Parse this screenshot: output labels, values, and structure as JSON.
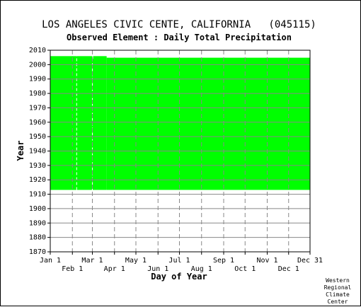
{
  "chart_data": {
    "type": "area",
    "title": "LOS ANGELES CIVIC CENTE, CALIFORNIA   (045115)",
    "subtitle": "Observed Element : Daily Total Precipitation",
    "xlabel": "Day of Year",
    "ylabel": "Year",
    "ylim": [
      1870,
      2010
    ],
    "xlim": [
      1,
      365
    ],
    "y_ticks": [
      1870,
      1880,
      1890,
      1900,
      1910,
      1920,
      1930,
      1940,
      1950,
      1960,
      1970,
      1980,
      1990,
      2000,
      2010
    ],
    "x_ticks_upper": [
      {
        "day": 1,
        "label": "Jan 1"
      },
      {
        "day": 60,
        "label": "Mar 1"
      },
      {
        "day": 121,
        "label": "May 1"
      },
      {
        "day": 182,
        "label": "Jul 1"
      },
      {
        "day": 244,
        "label": "Sep 1"
      },
      {
        "day": 305,
        "label": "Nov 1"
      },
      {
        "day": 365,
        "label": "Dec 31"
      }
    ],
    "x_ticks_lower": [
      {
        "day": 32,
        "label": "Feb 1"
      },
      {
        "day": 91,
        "label": "Apr 1"
      },
      {
        "day": 152,
        "label": "Jun 1"
      },
      {
        "day": 213,
        "label": "Aug 1"
      },
      {
        "day": 274,
        "label": "Oct 1"
      },
      {
        "day": 335,
        "label": "Dec 1"
      }
    ],
    "series": [
      {
        "color": "#00ff00",
        "start_year": 1913,
        "segments": [
          {
            "day_start": 1,
            "day_end": 60,
            "end_year": 2005.9
          },
          {
            "day_start": 60,
            "day_end": 61,
            "end_year": 2004.0
          },
          {
            "day_start": 61,
            "day_end": 80,
            "end_year": 2005.9
          },
          {
            "day_start": 80,
            "day_end": 365,
            "end_year": 2004.8
          }
        ],
        "gaps": [
          {
            "day": 38
          },
          {
            "day": 60
          }
        ]
      }
    ],
    "grid": true,
    "grid_style": "dashed",
    "credit": [
      "Western",
      "Regional",
      "Climate",
      "Center"
    ]
  }
}
